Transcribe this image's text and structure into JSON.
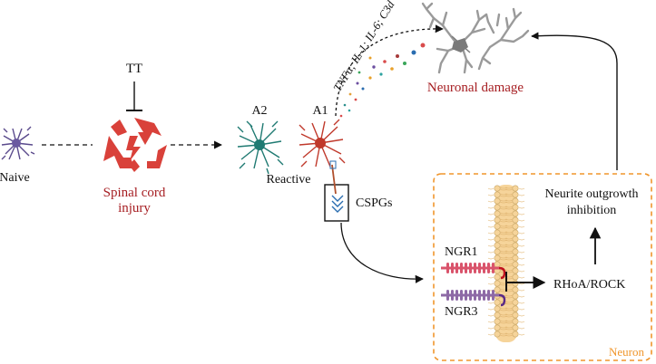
{
  "labels": {
    "naive": "Naive",
    "tt": "TT",
    "sci_line1": "Spinal cord",
    "sci_line2": "injury",
    "a2": "A2",
    "a1": "A1",
    "reactive": "Reactive",
    "cytokines": "TNFα; IL-1; IL-6; C3d",
    "neuronal_damage": "Neuronal damage",
    "cspgs": "CSPGs",
    "ngr1": "NGR1",
    "ngr3": "NGR3",
    "rhoa": "RHoA/ROCK",
    "neurite_line1": "Neurite outgrowth",
    "neurite_line2": "inhibition",
    "neuron": "Neuron"
  },
  "colors": {
    "injury_red": "#d9413a",
    "label_red": "#a61e22",
    "naive_cell": "#5a4a8c",
    "a2_cell": "#1f7a72",
    "a1_cell": "#c0392b",
    "membrane": "#f6d49a",
    "neuron_box": "#f0962c",
    "ngr1": "#d9536b",
    "ngr3": "#8e6aa6"
  }
}
